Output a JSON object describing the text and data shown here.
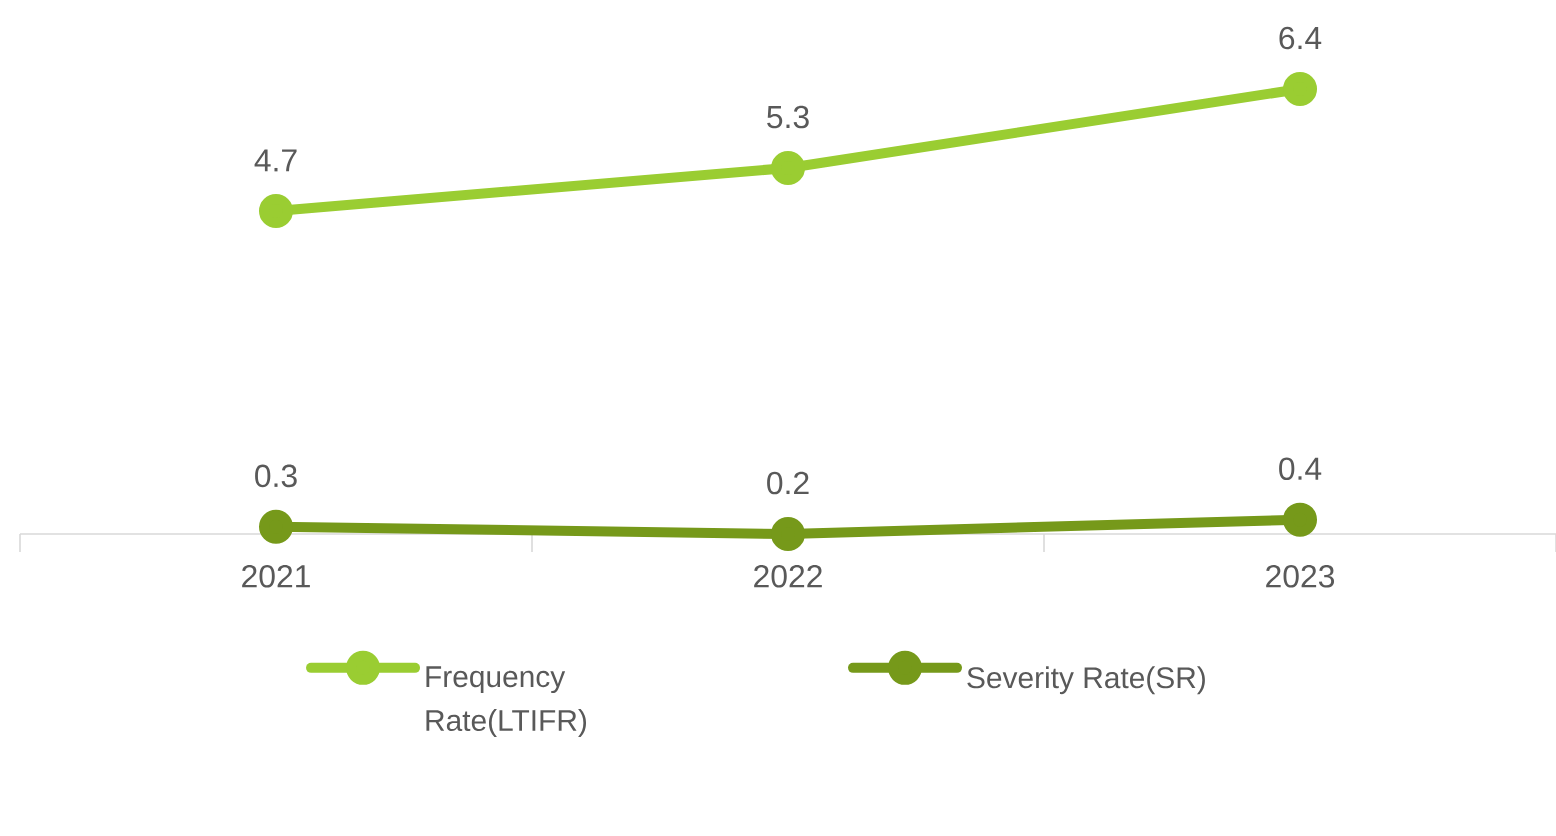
{
  "chart_data": {
    "type": "line",
    "categories": [
      "2021",
      "2022",
      "2023"
    ],
    "series": [
      {
        "name": "Frequency Rate(LTIFR)",
        "color": "#9acd32",
        "values": [
          4.7,
          5.3,
          6.4
        ]
      },
      {
        "name": "Severity Rate(SR)",
        "color": "#76991a",
        "values": [
          0.3,
          0.2,
          0.4
        ]
      }
    ],
    "data_labels": true,
    "legend": "bottom",
    "marker": "circle",
    "line_style": "solid",
    "grid": false,
    "tick_labels": "x"
  }
}
